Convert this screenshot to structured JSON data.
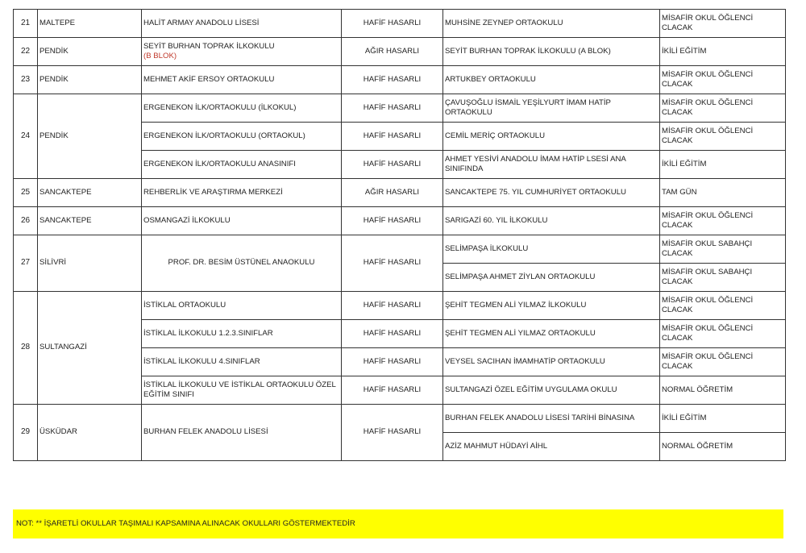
{
  "groups": [
    {
      "no": "21",
      "district": "MALTEPE",
      "schools": [
        {
          "name": "HALİT ARMAY ANADOLU LİSESİ",
          "damage": "HAFİF HASARLI",
          "targets": [
            {
              "name": "MUHSİNE ZEYNEP ORTAOKULU",
              "status": "MİSAFİR OKUL ÖĞLENCİ CLACAK"
            }
          ]
        }
      ]
    },
    {
      "no": "22",
      "district": "PENDİK",
      "schools": [
        {
          "name": "SEYİT BURHAN TOPRAK İLKOKULU",
          "note": "(B BLOK)",
          "damage": "AĞIR HASARLI",
          "targets": [
            {
              "name": "SEYİT BURHAN TOPRAK İLKOKULU  (A BLOK)",
              "status": "İKİLİ EĞİTİM"
            }
          ]
        }
      ]
    },
    {
      "no": "23",
      "district": "PENDİK",
      "schools": [
        {
          "name": "MEHMET AKİF ERSOY ORTAOKULU",
          "damage": "HAFİF HASARLI",
          "targets": [
            {
              "name": "ARTUKBEY ORTAOKULU",
              "status": "MİSAFİR OKUL ÖĞLENCİ CLACAK"
            }
          ]
        }
      ]
    },
    {
      "no": "24",
      "district": "PENDİK",
      "schools": [
        {
          "name": "ERGENEKON İLK/ORTAOKULU   (İLKOKUL)",
          "damage": "HAFİF HASARLI",
          "targets": [
            {
              "name": "ÇAVUŞOĞLU İSMAİL YEŞİLYURT İMAM HATİP ORTAOKULU",
              "status": "MİSAFİR OKUL ÖĞLENCİ CLACAK"
            }
          ]
        },
        {
          "name": "ERGENEKON İLK/ORTAOKULU   (ORTAOKUL)",
          "damage": "HAFİF HASARLI",
          "targets": [
            {
              "name": "CEMİL MERİÇ ORTAOKULU",
              "status": "MİSAFİR OKUL ÖĞLENCİ CLACAK"
            }
          ]
        },
        {
          "name": "ERGENEKON İLK/ORTAOKULU   ANASINIFI",
          "damage": "HAFİF HASARLI",
          "targets": [
            {
              "name": "AHMET YESİVİ ANADOLU İMAM HATİP LSESİ ANA SINIFINDA",
              "status": "İKİLİ EĞİTİM"
            }
          ]
        }
      ]
    },
    {
      "no": "25",
      "district": "SANCAKTEPE",
      "schools": [
        {
          "name": "REHBERLİK VE ARAŞTIRMA MERKEZİ",
          "damage": "AĞIR HASARLI",
          "targets": [
            {
              "name": "SANCAKTEPE 75. YIL CUMHURİYET ORTAOKULU",
              "status": "TAM GÜN"
            }
          ]
        }
      ]
    },
    {
      "no": "26",
      "district": "SANCAKTEPE",
      "schools": [
        {
          "name": "OSMANGAZİ İLKOKULU",
          "damage": "HAFİF HASARLI",
          "targets": [
            {
              "name": "SARIGAZİ 60. YIL İLKOKULU",
              "status": "MİSAFİR OKUL ÖĞLENCİ CLACAK"
            }
          ]
        }
      ]
    },
    {
      "no": "27",
      "district": "SİLİVRİ",
      "schools": [
        {
          "name": "PROF. DR. BESİM ÜSTÜNEL ANAOKULU",
          "centered": true,
          "damage": "HAFİF HASARLI",
          "targets": [
            {
              "name": "SELİMPAŞA İLKOKULU",
              "status": "MİSAFİR OKUL SABAHÇI CLACAK"
            },
            {
              "name": "SELİMPAŞA AHMET ZİYLAN ORTAOKULU",
              "status": "MİSAFİR OKUL SABAHÇI CLACAK"
            }
          ]
        }
      ]
    },
    {
      "no": "28",
      "district": "SULTANGAZİ",
      "schools": [
        {
          "name": "İSTİKLAL ORTAOKULU",
          "damage": "HAFİF HASARLI",
          "targets": [
            {
              "name": "ŞEHİT TEGMEN ALİ YILMAZ İLKOKULU",
              "status": "MİSAFİR OKUL ÖĞLENCİ CLACAK"
            }
          ]
        },
        {
          "name": "İSTİKLAL İLKOKULU 1.2.3.SINIFLAR",
          "damage": "HAFİF HASARLI",
          "targets": [
            {
              "name": "ŞEHİT TEGMEN ALİ YILMAZ ORTAOKULU",
              "status": "MİSAFİR OKUL ÖĞLENCİ CLACAK"
            }
          ]
        },
        {
          "name": "İSTİKLAL İLKOKULU 4.SINIFLAR",
          "damage": "HAFİF HASARLI",
          "targets": [
            {
              "name": "VEYSEL SACIHAN İMAMHATİP ORTAOKULU",
              "status": "MİSAFİR OKUL ÖĞLENCİ CLACAK"
            }
          ]
        },
        {
          "name": "İSTİKLAL İLKOKULU VE İSTİKLAL ORTAOKULU ÖZEL EĞİTİM SINIFI",
          "damage": "HAFİF HASARLI",
          "targets": [
            {
              "name": "SULTANGAZİ ÖZEL EĞİTİM UYGULAMA OKULU",
              "status": "NORMAL ÖĞRETİM"
            }
          ]
        }
      ]
    },
    {
      "no": "29",
      "district": "ÜSKÜDAR",
      "schools": [
        {
          "name": "BURHAN FELEK ANADOLU LİSESİ",
          "damage": "HAFİF HASARLI",
          "targets": [
            {
              "name": "BURHAN FELEK ANADOLU LİSESİ TARİHİ BİNASINA",
              "status": "İKİLİ EĞİTİM"
            },
            {
              "name": "AZİZ MAHMUT HÜDAYİ AİHL",
              "status": "NORMAL ÖĞRETİM"
            }
          ]
        }
      ]
    }
  ],
  "footer_note": "NOT:  **  İŞARETLİ OKULLAR TAŞIMALI KAPSAMINA ALINACAK OKULLARI GÖSTERMEKTEDİR",
  "colors": {
    "note_highlight": "#ffff00",
    "red_text": "#c0392b"
  }
}
